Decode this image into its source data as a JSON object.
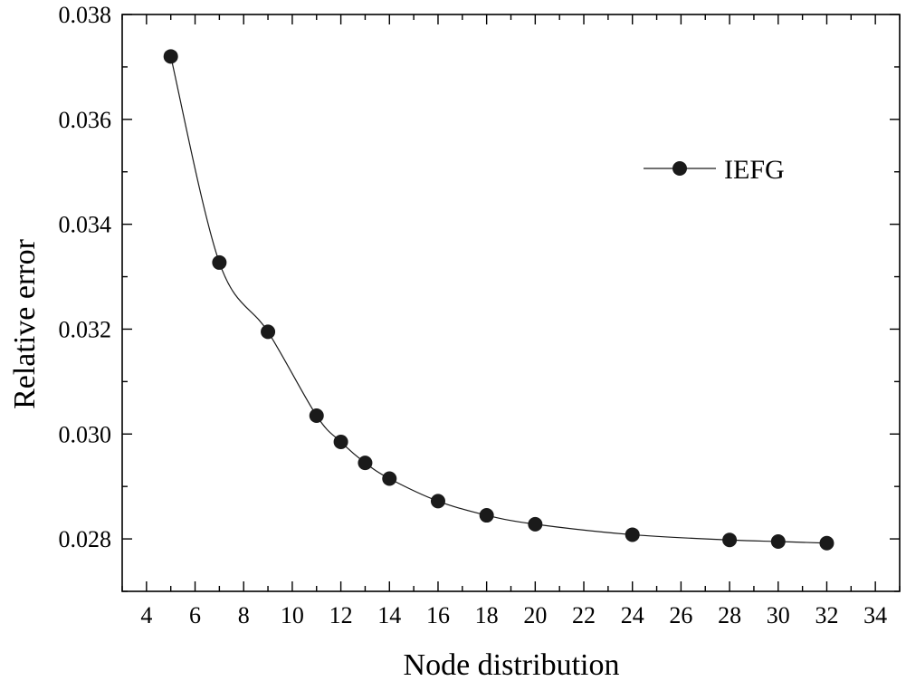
{
  "chart_data": {
    "type": "line",
    "xlabel": "Node distribution",
    "ylabel": "Relative error",
    "xlim": [
      3,
      35
    ],
    "ylim": [
      0.027,
      0.038
    ],
    "x_ticks": [
      4,
      6,
      8,
      10,
      12,
      14,
      16,
      18,
      20,
      22,
      24,
      26,
      28,
      30,
      32,
      34
    ],
    "y_ticks": [
      0.028,
      0.03,
      0.032,
      0.034,
      0.036,
      0.038
    ],
    "x_tick_labels": [
      "4",
      "6",
      "8",
      "10",
      "12",
      "14",
      "16",
      "18",
      "20",
      "22",
      "24",
      "26",
      "28",
      "30",
      "32",
      "34"
    ],
    "y_tick_labels": [
      "0.028",
      "0.030",
      "0.032",
      "0.034",
      "0.036",
      "0.038"
    ],
    "grid": false,
    "legend_position": "top-right",
    "series": [
      {
        "name": "IEFG",
        "color": "#1a1a1a",
        "marker": "filled-circle",
        "x": [
          5,
          7,
          9,
          11,
          12,
          13,
          14,
          16,
          18,
          20,
          24,
          28,
          30,
          32
        ],
        "y": [
          0.0372,
          0.03327,
          0.03195,
          0.03035,
          0.02985,
          0.02945,
          0.02915,
          0.02872,
          0.02845,
          0.02828,
          0.02808,
          0.02798,
          0.02795,
          0.02792
        ]
      }
    ]
  }
}
